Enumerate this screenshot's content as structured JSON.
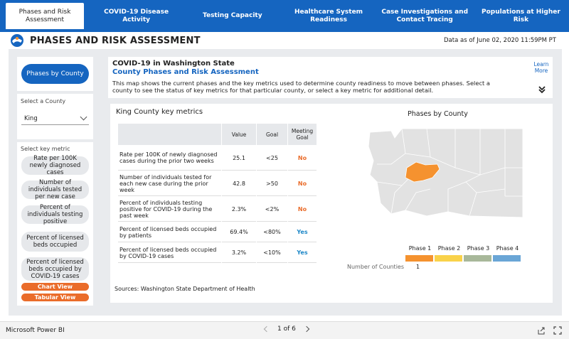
{
  "nav": {
    "tabs": [
      {
        "label": "Phases and Risk Assessment"
      },
      {
        "label": "COVID-19 Disease Activity"
      },
      {
        "label": "Testing Capacity"
      },
      {
        "label": "Healthcare System Readiness"
      },
      {
        "label": "Case Investigations and Contact Tracing"
      },
      {
        "label": "Populations at Higher Risk"
      }
    ]
  },
  "header": {
    "title": "PHASES AND RISK ASSESSMENT",
    "date": "Data as of June 02, 2020 11:59PM PT"
  },
  "left": {
    "phases_button": "Phases by County",
    "select_county_label": "Select a County",
    "county_value": "King",
    "select_metric_label": "Select key metric",
    "metrics": [
      "Rate per 100K newly diagnosed cases",
      "Number of individuals tested per new case",
      "Percent of individuals testing positive",
      "Percent of licensed beds occupied",
      "Percent of licensed beds occupied by COVID-19 cases"
    ],
    "chart_view": "Chart View",
    "tabular_view": "Tabular View"
  },
  "info": {
    "heading": "COVID-19 in Washington State",
    "subheading": "County Phases and Risk Assessment",
    "description": "This map shows the current phases and the key metrics used to determine county readiness to move between phases. Select a county to see the status of key metrics for that particular county, or select a key metric for additional detail.",
    "learn_more": "Learn More"
  },
  "metrics_table": {
    "title": "King County key metrics",
    "headers": [
      "",
      "Value",
      "Goal",
      "Meeting Goal"
    ],
    "rows": [
      {
        "metric": "Rate per 100K of newly diagnosed cases during the prior two weeks",
        "value": "25.1",
        "goal": "<25",
        "meeting": "No"
      },
      {
        "metric": "Number of individuals tested for each new case during the prior week",
        "value": "42.8",
        "goal": ">50",
        "meeting": "No"
      },
      {
        "metric": "Percent of individuals testing positive for COVID-19 during the past week",
        "value": "2.3%",
        "goal": "<2%",
        "meeting": "No"
      },
      {
        "metric": "Percent of licensed beds occupied by patients",
        "value": "69.4%",
        "goal": "<80%",
        "meeting": "Yes"
      },
      {
        "metric": "Percent of licensed beds occupied by COVID-19 cases",
        "value": "3.2%",
        "goal": "<10%",
        "meeting": "Yes"
      }
    ]
  },
  "map": {
    "title": "Phases by County",
    "phases": [
      {
        "label": "Phase 1",
        "color": "#f5922f"
      },
      {
        "label": "Phase 2",
        "color": "#f9d24a"
      },
      {
        "label": "Phase 3",
        "color": "#a8b89a"
      },
      {
        "label": "Phase 4",
        "color": "#6aa6d6"
      }
    ],
    "counties_label": "Number of Counties",
    "phase1_count": "1",
    "highlight_color": "#f5922f",
    "base_color": "#e2e2e2"
  },
  "sources": "Sources: Washington State Department of Health",
  "footer": {
    "brand": "Microsoft Power BI",
    "page": "1 of 6"
  },
  "colors": {
    "primary": "#1565c0",
    "accent_orange": "#ea6c2a",
    "yes_blue": "#1e88c8"
  }
}
